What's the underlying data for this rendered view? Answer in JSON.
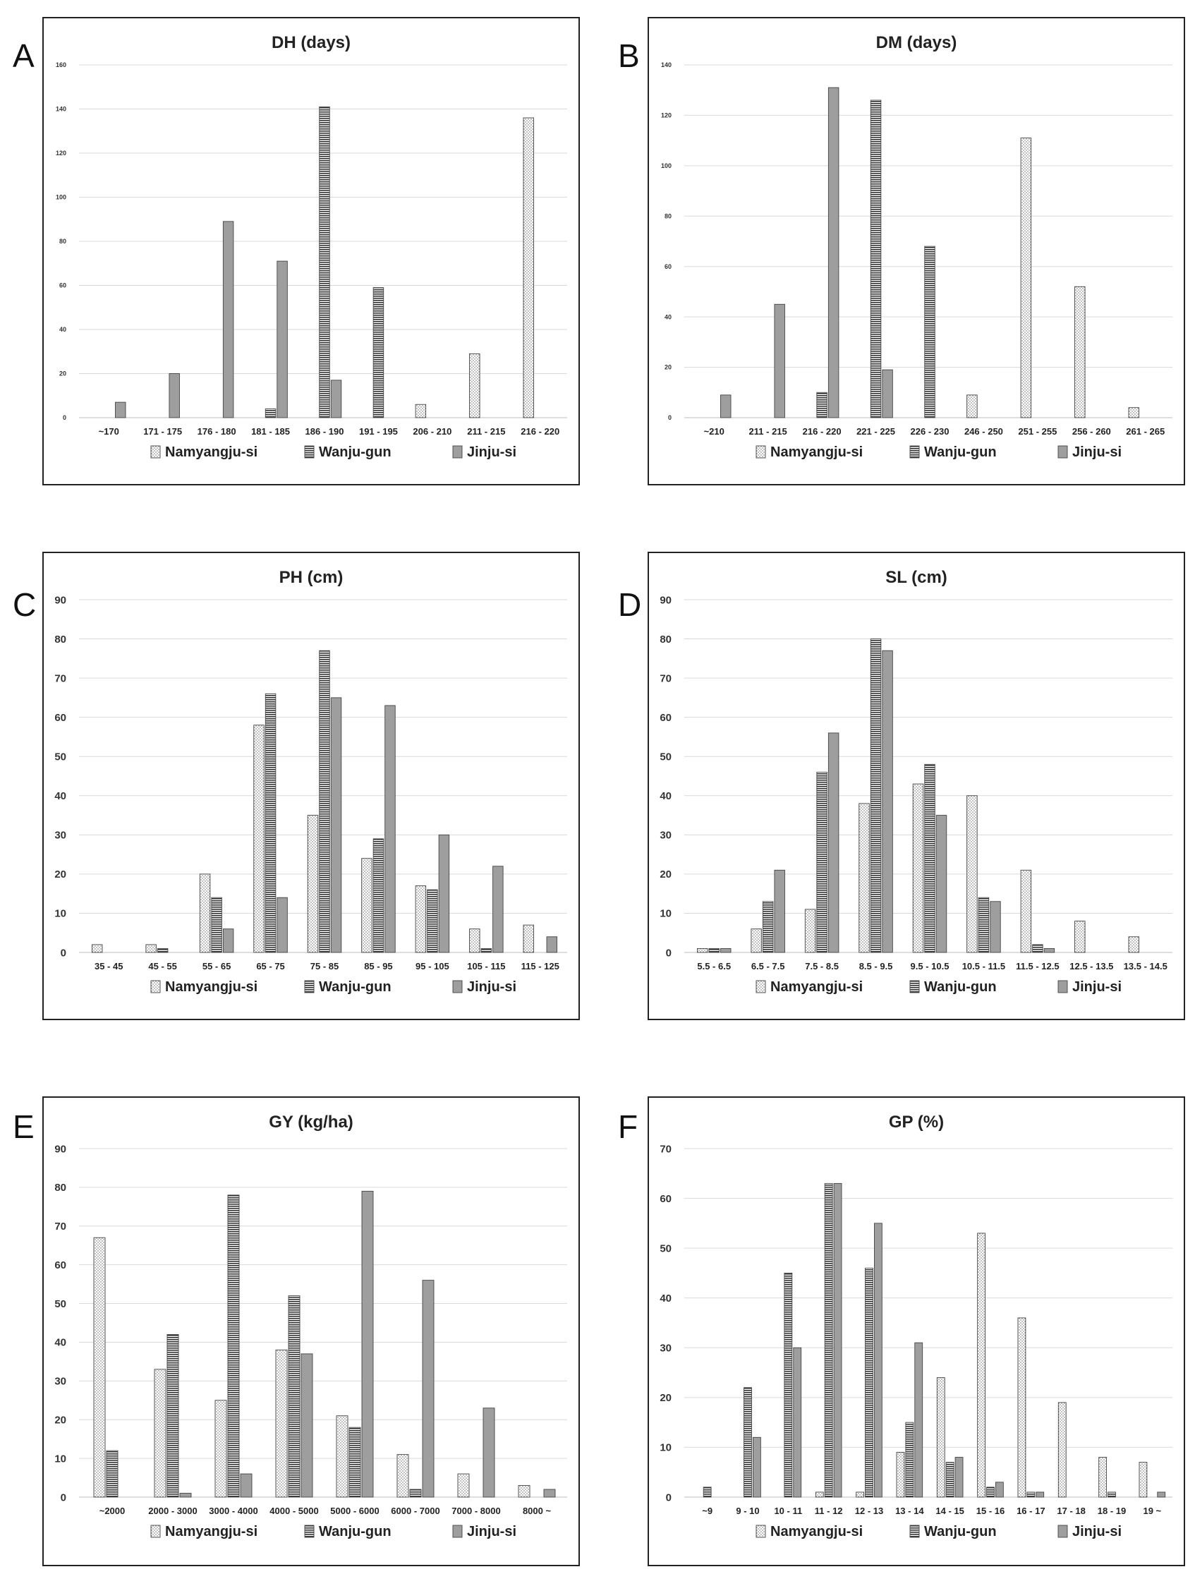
{
  "legend": [
    "Namyangju-si",
    "Wanju-gun",
    "Jinju-si"
  ],
  "chart_data": [
    {
      "panel": "A",
      "type": "bar",
      "title": "DH (days)",
      "categories": [
        "~170",
        "171 - 175",
        "176 - 180",
        "181 - 185",
        "186 - 190",
        "191 - 195",
        "206 - 210",
        "211 - 215",
        "216 - 220"
      ],
      "ylim": [
        0,
        160
      ],
      "yticks": [
        0,
        20,
        40,
        60,
        80,
        100,
        120,
        140,
        160
      ],
      "series": [
        {
          "name": "Namyangju-si",
          "values": [
            0,
            0,
            0,
            0,
            0,
            0,
            6,
            29,
            136
          ]
        },
        {
          "name": "Wanju-gun",
          "values": [
            0,
            0,
            0,
            4,
            141,
            59,
            0,
            0,
            0
          ]
        },
        {
          "name": "Jinju-si",
          "values": [
            7,
            20,
            89,
            71,
            17,
            0,
            0,
            0,
            0
          ]
        }
      ]
    },
    {
      "panel": "B",
      "type": "bar",
      "title": "DM (days)",
      "categories": [
        "~210",
        "211 - 215",
        "216 - 220",
        "221 - 225",
        "226 - 230",
        "246 - 250",
        "251 - 255",
        "256 - 260",
        "261 - 265"
      ],
      "ylim": [
        0,
        140
      ],
      "yticks": [
        0,
        20,
        40,
        60,
        80,
        100,
        120,
        140
      ],
      "series": [
        {
          "name": "Namyangju-si",
          "values": [
            0,
            0,
            0,
            0,
            0,
            9,
            111,
            52,
            4
          ]
        },
        {
          "name": "Wanju-gun",
          "values": [
            0,
            0,
            10,
            126,
            68,
            0,
            0,
            0,
            0
          ]
        },
        {
          "name": "Jinju-si",
          "values": [
            9,
            45,
            131,
            19,
            0,
            0,
            0,
            0,
            0
          ]
        }
      ]
    },
    {
      "panel": "C",
      "type": "bar",
      "title": "PH (cm)",
      "categories": [
        "35 - 45",
        "45 - 55",
        "55 - 65",
        "65 - 75",
        "75 - 85",
        "85 - 95",
        "95 - 105",
        "105 - 115",
        "115 - 125"
      ],
      "ylim": [
        0,
        90
      ],
      "yticks": [
        0,
        10,
        20,
        30,
        40,
        50,
        60,
        70,
        80,
        90
      ],
      "series": [
        {
          "name": "Namyangju-si",
          "values": [
            2,
            2,
            20,
            58,
            35,
            24,
            17,
            6,
            7
          ]
        },
        {
          "name": "Wanju-gun",
          "values": [
            0,
            1,
            14,
            66,
            77,
            29,
            16,
            1,
            0
          ]
        },
        {
          "name": "Jinju-si",
          "values": [
            0,
            0,
            6,
            14,
            65,
            63,
            30,
            22,
            4
          ]
        }
      ]
    },
    {
      "panel": "D",
      "type": "bar",
      "title": "SL (cm)",
      "categories": [
        "5.5 - 6.5",
        "6.5 - 7.5",
        "7.5 - 8.5",
        "8.5 - 9.5",
        "9.5 - 10.5",
        "10.5 - 11.5",
        "11.5 - 12.5",
        "12.5 - 13.5",
        "13.5 - 14.5"
      ],
      "ylim": [
        0,
        90
      ],
      "yticks": [
        0,
        10,
        20,
        30,
        40,
        50,
        60,
        70,
        80,
        90
      ],
      "series": [
        {
          "name": "Namyangju-si",
          "values": [
            1,
            6,
            11,
            38,
            43,
            40,
            21,
            8,
            4
          ]
        },
        {
          "name": "Wanju-gun",
          "values": [
            1,
            13,
            46,
            80,
            48,
            14,
            2,
            0,
            0
          ]
        },
        {
          "name": "Jinju-si",
          "values": [
            1,
            21,
            56,
            77,
            35,
            13,
            1,
            0,
            0
          ]
        }
      ]
    },
    {
      "panel": "E",
      "type": "bar",
      "title": "GY (kg/ha)",
      "categories": [
        "~2000",
        "2000 - 3000",
        "3000 - 4000",
        "4000 - 5000",
        "5000 - 6000",
        "6000 - 7000",
        "7000 - 8000",
        "8000 ~"
      ],
      "ylim": [
        0,
        90
      ],
      "yticks": [
        0,
        10,
        20,
        30,
        40,
        50,
        60,
        70,
        80,
        90
      ],
      "series": [
        {
          "name": "Namyangju-si",
          "values": [
            67,
            33,
            25,
            38,
            21,
            11,
            6,
            3
          ]
        },
        {
          "name": "Wanju-gun",
          "values": [
            12,
            42,
            78,
            52,
            18,
            2,
            0,
            0
          ]
        },
        {
          "name": "Jinju-si",
          "values": [
            0,
            1,
            6,
            37,
            79,
            56,
            23,
            2
          ]
        }
      ]
    },
    {
      "panel": "F",
      "type": "bar",
      "title": "GP (%)",
      "categories": [
        "~9",
        "9 - 10",
        "10 - 11",
        "11 - 12",
        "12 - 13",
        "13 - 14",
        "14 - 15",
        "15 - 16",
        "16 - 17",
        "17 - 18",
        "18 - 19",
        "19 ~"
      ],
      "ylim": [
        0,
        70
      ],
      "yticks": [
        0,
        10,
        20,
        30,
        40,
        50,
        60,
        70
      ],
      "series": [
        {
          "name": "Namyangju-si",
          "values": [
            0,
            0,
            0,
            1,
            1,
            9,
            24,
            53,
            36,
            19,
            8,
            7
          ]
        },
        {
          "name": "Wanju-gun",
          "values": [
            2,
            22,
            45,
            63,
            46,
            15,
            7,
            2,
            1,
            0,
            1,
            0
          ]
        },
        {
          "name": "Jinju-si",
          "values": [
            0,
            12,
            30,
            63,
            55,
            31,
            8,
            3,
            1,
            0,
            0,
            1
          ]
        }
      ]
    }
  ]
}
